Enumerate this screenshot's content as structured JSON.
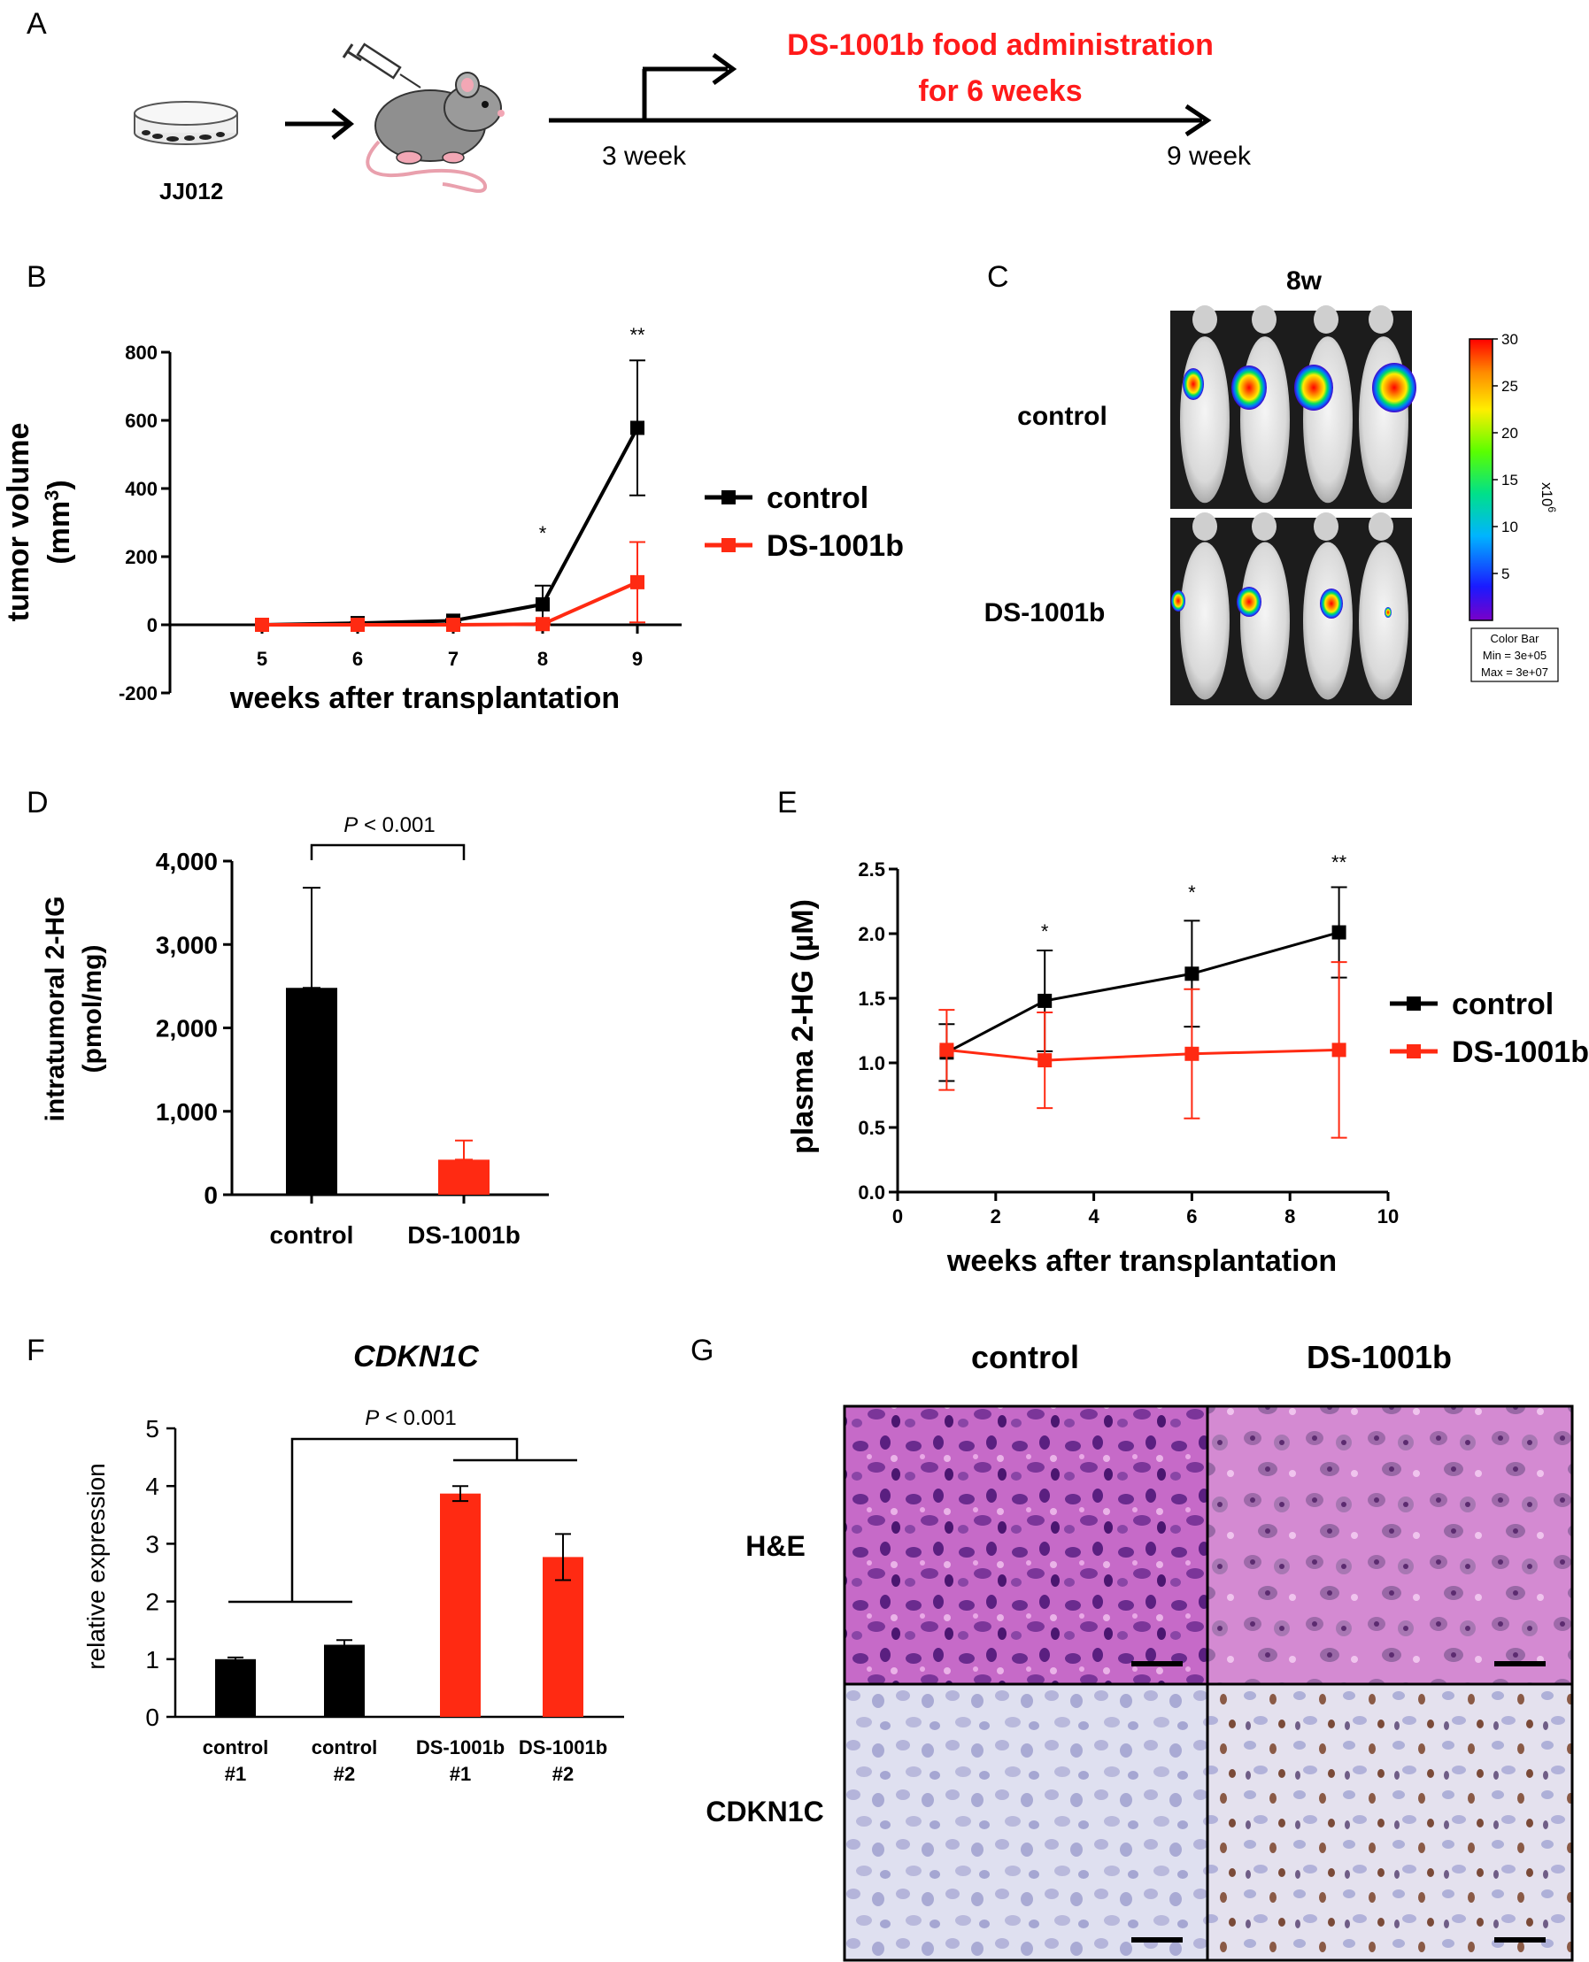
{
  "panel_letters": [
    "A",
    "B",
    "C",
    "D",
    "E",
    "F",
    "G"
  ],
  "colors": {
    "control": "#000000",
    "treated": "#ff2a12",
    "accent_text": "#ff1a1a"
  },
  "panelA": {
    "cell_line": "JJ012",
    "treatment_label_line1": "DS-1001b food administration",
    "treatment_label_line2": "for 6 weeks",
    "start_label": "3 week",
    "end_label": "9 week"
  },
  "panelC": {
    "timepoint": "8w",
    "row_labels": [
      "control",
      "DS-1001b"
    ],
    "colorbar_ticks": [
      "30",
      "25",
      "20",
      "15",
      "10",
      "5"
    ],
    "colorbar_unit": "x10",
    "colorbar_unit_exp": "6",
    "colorbar_caption": [
      "Color Bar",
      "Min = 3e+05",
      "Max = 3e+07"
    ]
  },
  "panelG": {
    "col_labels": [
      "control",
      "DS-1001b"
    ],
    "row_labels": [
      "H&E",
      "CDKN1C"
    ]
  },
  "chart_data": [
    {
      "id": "B",
      "type": "line",
      "title": "",
      "xlabel": "weeks after transplantation",
      "ylabel": "tumor volume",
      "ylabel2": "(mm",
      "ylabel2_sup": "3",
      "ylabel2_end": ")",
      "x": [
        5,
        6,
        7,
        8,
        9
      ],
      "xticks": [
        "5",
        "6",
        "7",
        "8",
        "9"
      ],
      "yticks": [
        "800",
        "600",
        "400",
        "200",
        "0",
        "-200"
      ],
      "ylim": [
        -200,
        800
      ],
      "series": [
        {
          "name": "control",
          "values": [
            0,
            5,
            12,
            60,
            578
          ],
          "err": [
            0,
            3,
            5,
            55,
            198
          ]
        },
        {
          "name": "DS-1001b",
          "values": [
            0,
            0,
            0,
            2,
            125
          ],
          "err": [
            0,
            0,
            0,
            3,
            118
          ]
        }
      ],
      "annotations": [
        "*",
        "**"
      ],
      "legend": [
        "control",
        "DS-1001b"
      ]
    },
    {
      "id": "D",
      "type": "bar",
      "ylabel": "intratumoral 2-HG",
      "ylabel2": "(pmol/mg)",
      "categories": [
        "control",
        "DS-1001b"
      ],
      "values": [
        2480,
        420
      ],
      "err": [
        1200,
        230
      ],
      "yticks": [
        "4,000",
        "3,000",
        "2,000",
        "1,000",
        "0"
      ],
      "ylim": [
        0,
        4000
      ],
      "pvalue_p": "P",
      "pvalue_rest": " < 0.001"
    },
    {
      "id": "E",
      "type": "line",
      "xlabel": "weeks after transplantation",
      "ylabel": "plasma 2-HG (µM)",
      "x": [
        1,
        3,
        6,
        9
      ],
      "xticks": [
        "0",
        "2",
        "4",
        "6",
        "8",
        "10"
      ],
      "yticks": [
        "2.5",
        "2.0",
        "1.5",
        "1.0",
        "0.5",
        "0.0"
      ],
      "xlim": [
        0,
        10
      ],
      "ylim": [
        0,
        2.5
      ],
      "series": [
        {
          "name": "control",
          "values": [
            1.08,
            1.48,
            1.69,
            2.01
          ],
          "err": [
            0.22,
            0.39,
            0.41,
            0.35
          ]
        },
        {
          "name": "DS-1001b",
          "values": [
            1.1,
            1.02,
            1.07,
            1.1
          ],
          "err": [
            0.31,
            0.37,
            0.5,
            0.68
          ]
        }
      ],
      "annotations": [
        "*",
        "*",
        "**"
      ],
      "legend": [
        "control",
        "DS-1001b"
      ]
    },
    {
      "id": "F",
      "type": "bar",
      "title": "CDKN1C",
      "ylabel": "relative expression",
      "categories": [
        "control",
        "control",
        "DS-1001b",
        "DS-1001b"
      ],
      "category_sub": [
        "#1",
        "#2",
        "#1",
        "#2"
      ],
      "values": [
        1.0,
        1.25,
        3.87,
        2.77
      ],
      "err": [
        0.03,
        0.08,
        0.13,
        0.4
      ],
      "yticks": [
        "5",
        "4",
        "3",
        "2",
        "1",
        "0"
      ],
      "ylim": [
        0,
        5
      ],
      "pvalue_p": "P",
      "pvalue_rest": " < 0.001"
    }
  ]
}
